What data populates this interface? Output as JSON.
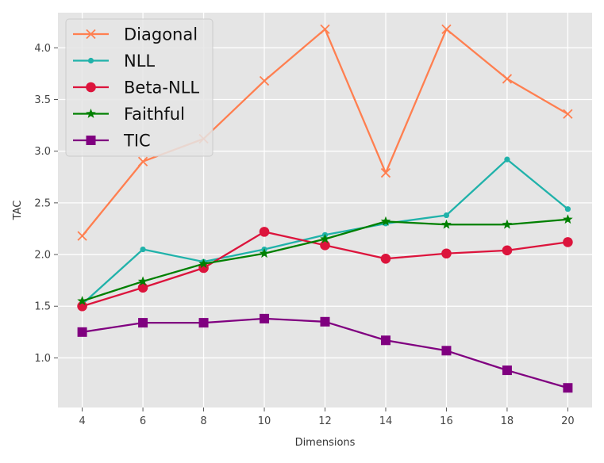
{
  "chart_data": {
    "type": "line",
    "title": "",
    "xlabel": "Dimensions",
    "ylabel": "TAC",
    "xlim": [
      3.2,
      20.8
    ],
    "ylim": [
      0.52,
      4.34
    ],
    "x": [
      4,
      6,
      8,
      10,
      12,
      14,
      16,
      18,
      20
    ],
    "xticks": [
      4,
      6,
      8,
      10,
      12,
      14,
      16,
      18,
      20
    ],
    "yticks": [
      1.0,
      1.5,
      2.0,
      2.5,
      3.0,
      3.5,
      4.0
    ],
    "ytick_labels": [
      "1.0",
      "1.5",
      "2.0",
      "2.5",
      "3.0",
      "3.5",
      "4.0"
    ],
    "grid": true,
    "legend_position": "top-left",
    "series": [
      {
        "name": "Diagonal",
        "color": "#ff7f50",
        "marker": "x",
        "values": [
          2.18,
          2.9,
          3.12,
          3.68,
          4.18,
          2.79,
          4.18,
          3.7,
          3.36
        ]
      },
      {
        "name": "NLL",
        "color": "#20b2aa",
        "marker": "small-circle",
        "values": [
          1.52,
          2.05,
          1.93,
          2.05,
          2.19,
          2.3,
          2.38,
          2.92,
          2.44
        ]
      },
      {
        "name": "Beta-NLL",
        "color": "#dc143c",
        "marker": "circle",
        "values": [
          1.5,
          1.68,
          1.87,
          2.22,
          2.09,
          1.96,
          2.01,
          2.04,
          2.12
        ]
      },
      {
        "name": "Faithful",
        "color": "#008000",
        "marker": "star",
        "values": [
          1.55,
          1.74,
          1.91,
          2.01,
          2.15,
          2.32,
          2.29,
          2.29,
          2.34
        ]
      },
      {
        "name": "TIC",
        "color": "#800080",
        "marker": "square",
        "values": [
          1.25,
          1.34,
          1.34,
          1.38,
          1.35,
          1.17,
          1.07,
          0.88,
          0.71
        ]
      }
    ]
  }
}
